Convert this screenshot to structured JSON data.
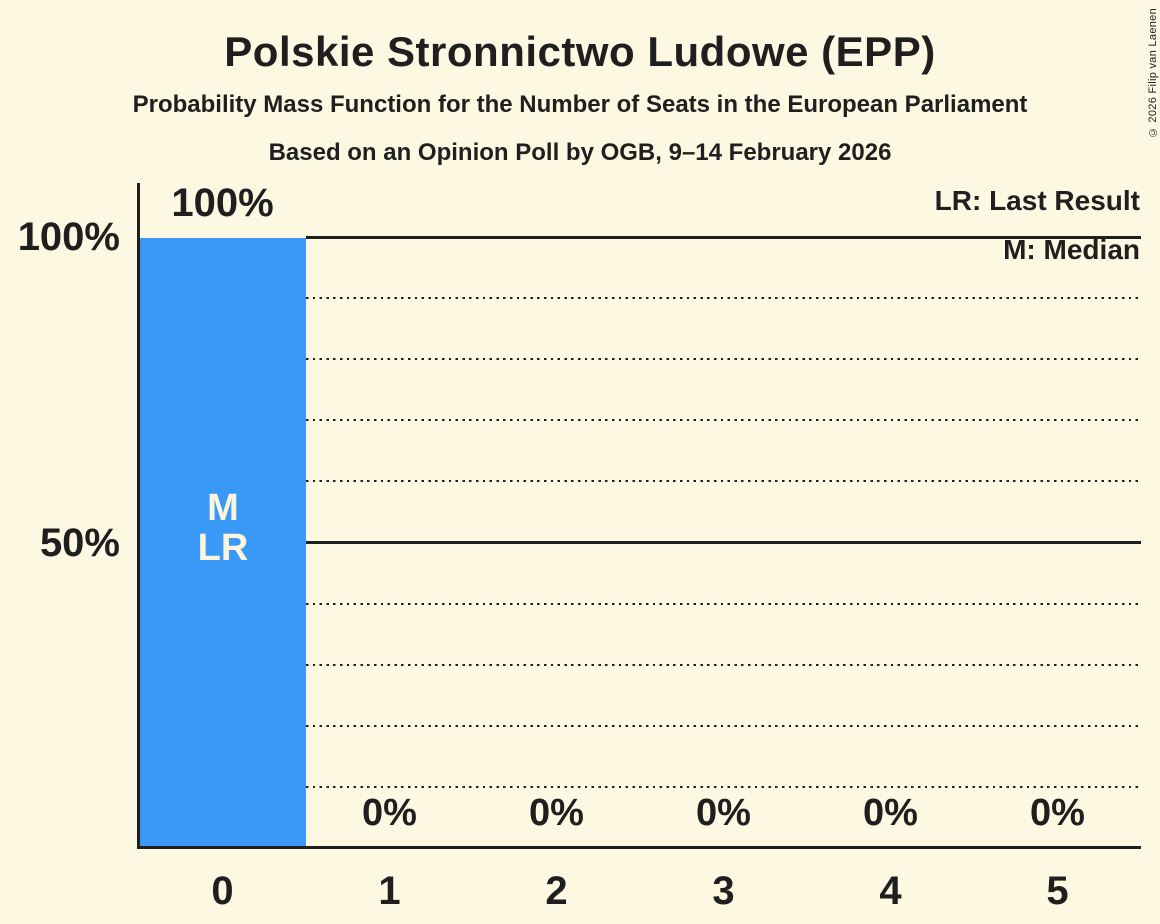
{
  "title": "Polskie Stronnictwo Ludowe (EPP)",
  "subtitle1": "Probability Mass Function for the Number of Seats in the European Parliament",
  "subtitle2": "Based on an Opinion Poll by OGB, 9–14 February 2026",
  "copyright": "© 2026 Filip van Laenen",
  "colors": {
    "background": "#FCF8E1",
    "bar": "#3A99F7",
    "text": "#1F1F1F",
    "bar_label": "#FAF5DC"
  },
  "legend": {
    "lr_label": "LR: Last Result",
    "m_label": "M: Median"
  },
  "y_axis": {
    "tick_100": "100%",
    "tick_50": "50%"
  },
  "annotations": {
    "median_label": "M",
    "last_result_label": "LR"
  },
  "chart_data": {
    "type": "bar",
    "title": "Polskie Stronnictwo Ludowe (EPP)",
    "subtitle": "Probability Mass Function for the Number of Seats in the European Parliament",
    "poll": "Based on an Opinion Poll by OGB, 9–14 February 2026",
    "categories": [
      "0",
      "1",
      "2",
      "3",
      "4",
      "5"
    ],
    "values": [
      100,
      0,
      0,
      0,
      0,
      0
    ],
    "value_labels": [
      "100%",
      "0%",
      "0%",
      "0%",
      "0%",
      "0%"
    ],
    "xlabel": "",
    "ylabel": "",
    "ylim": [
      0,
      100
    ],
    "yticks_labeled": [
      "100%",
      "50%"
    ],
    "grid": "dotted horizontal lines every 10%, solid at 50% and 100%",
    "legend_position": "top-right",
    "legend_entries": [
      "LR: Last Result",
      "M: Median"
    ],
    "median_seats": 0,
    "last_result_seats": 0,
    "bar_color": "#3A99F7"
  }
}
